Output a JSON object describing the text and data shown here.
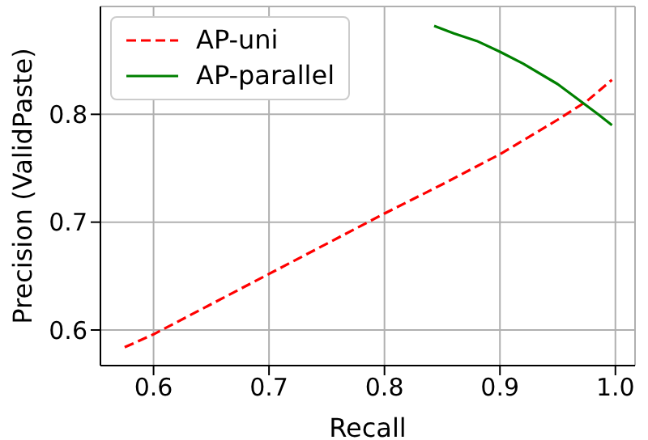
{
  "chart_data": {
    "type": "line",
    "xlabel": "Recall",
    "ylabel": "Precision (ValidPaste)",
    "x": [
      0.575,
      0.6,
      0.65,
      0.7,
      0.75,
      0.8,
      0.85,
      0.9,
      0.95,
      0.975,
      0.997
    ],
    "series": [
      {
        "name": "AP-uni",
        "color": "#ff0000",
        "line_style": "dashed",
        "values": [
          0.584,
          0.596,
          0.624,
          0.652,
          0.68,
          0.708,
          0.735,
          0.763,
          0.795,
          0.812,
          0.832
        ]
      },
      {
        "name": "AP-parallel",
        "color": "#008000",
        "line_style": "solid",
        "x": [
          0.843,
          0.86,
          0.88,
          0.9,
          0.92,
          0.95,
          0.97,
          0.985,
          0.997
        ],
        "values": [
          0.882,
          0.875,
          0.868,
          0.858,
          0.847,
          0.828,
          0.812,
          0.8,
          0.79
        ]
      }
    ],
    "xlim": [
      0.554,
      1.017
    ],
    "xticks": [
      {
        "value": 0.6,
        "label": "0.6"
      },
      {
        "value": 0.7,
        "label": "0.7"
      },
      {
        "value": 0.8,
        "label": "0.8"
      },
      {
        "value": 0.9,
        "label": "0.9"
      },
      {
        "value": 1.0,
        "label": "1.0"
      }
    ],
    "ylim": [
      0.567,
      0.9
    ],
    "yticks": [
      {
        "value": 0.6,
        "label": "0.6"
      },
      {
        "value": 0.7,
        "label": "0.7"
      },
      {
        "value": 0.8,
        "label": "0.8"
      }
    ],
    "grid": true,
    "legend": "top left"
  }
}
